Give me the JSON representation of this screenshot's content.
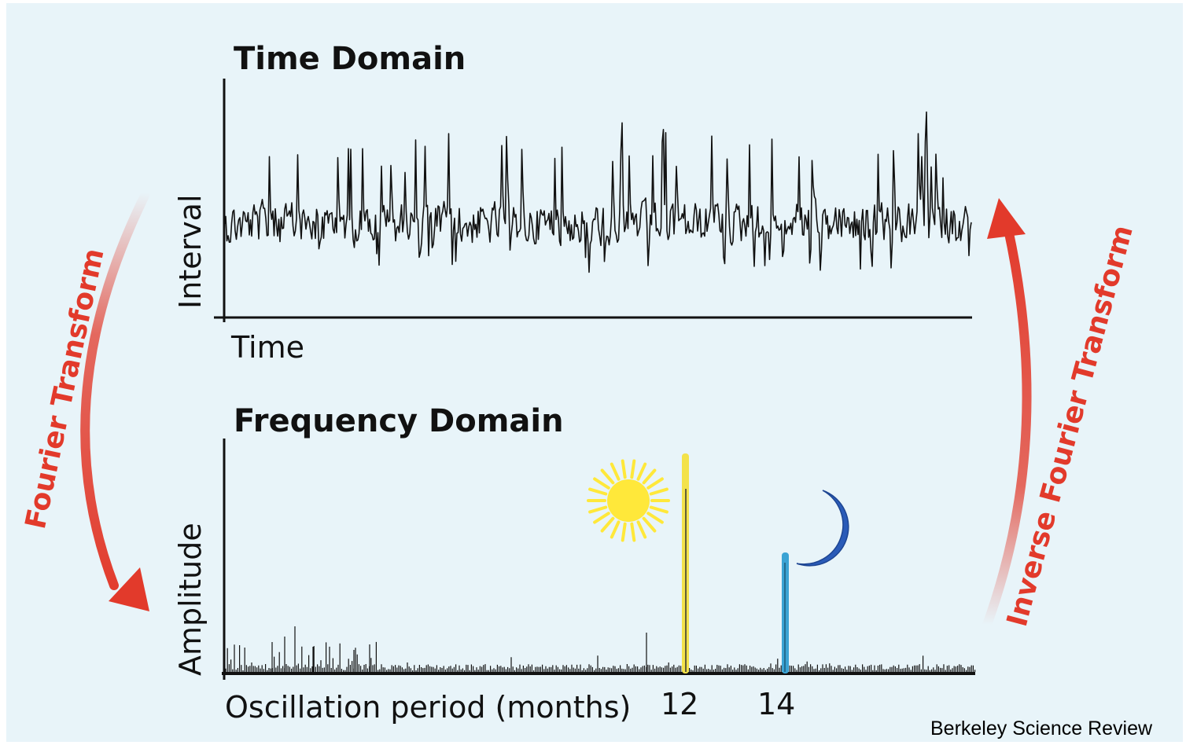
{
  "colors": {
    "background": "#e8f4f9",
    "signal": "#111111",
    "transform_arrow": "#e23a2b",
    "sun": "#ffe83a",
    "sun_peak": "#f3e24a",
    "moon": "#2a5bb8",
    "moon_peak": "#3aa3d4"
  },
  "icons": {
    "sun": "sun-icon",
    "moon": "crescent-moon-icon"
  },
  "time_domain": {
    "title": "Time Domain",
    "ylabel": "Interval",
    "xlabel": "Time"
  },
  "frequency_domain": {
    "title": "Frequency Domain",
    "ylabel": "Amplitude",
    "xlabel": "Oscillation period (months)",
    "ticks": [
      {
        "value": 12,
        "label": "12"
      },
      {
        "value": 14,
        "label": "14"
      }
    ],
    "peaks": [
      {
        "period": 12,
        "relative_amplitude": 1.0,
        "color_key": "sun_peak"
      },
      {
        "period": 14,
        "relative_amplitude": 0.52,
        "color_key": "moon_peak"
      }
    ]
  },
  "arrows": {
    "forward": "Fourier Transform",
    "inverse": "Inverse Fourier Transform"
  },
  "credit": "Berkeley Science Review"
}
